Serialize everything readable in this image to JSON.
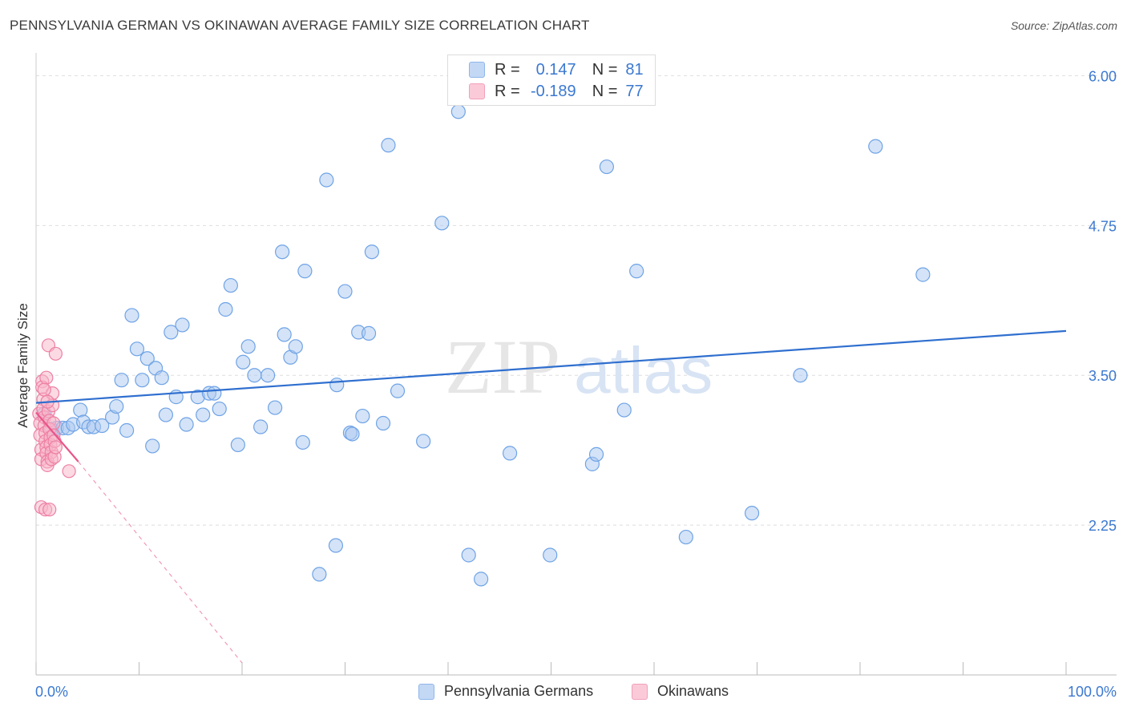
{
  "header": {
    "title": "PENNSYLVANIA GERMAN VS OKINAWAN AVERAGE FAMILY SIZE CORRELATION CHART",
    "source": "Source: ZipAtlas.com"
  },
  "watermark": {
    "zip": "ZIP",
    "atlas": "atlas"
  },
  "stats_legend": {
    "r_label": "R =",
    "n_label": "N =",
    "series": [
      {
        "r": "0.147",
        "n": "81",
        "color": "#6fa3e6"
      },
      {
        "r": "-0.189",
        "n": "77",
        "color": "#f08fae"
      }
    ]
  },
  "colors": {
    "blue_fill": "#aac8f0",
    "blue_stroke": "#6fa3e6",
    "blue_line": "#2f6fcf",
    "pink_fill": "#f7b6ca",
    "pink_stroke": "#ee7fa3",
    "pink_line": "#e8558a",
    "tick_label": "#3b78d0",
    "grid": "#dddddd"
  },
  "chart_data": {
    "type": "scatter",
    "title": "PENNSYLVANIA GERMAN VS OKINAWAN AVERAGE FAMILY SIZE CORRELATION CHART",
    "xlabel": "",
    "ylabel": "Average Family Size",
    "xlim": [
      0,
      100
    ],
    "ylim": [
      1.0,
      6.15
    ],
    "x_tick_labels": [
      "0.0%",
      "100.0%"
    ],
    "y_ticks": [
      2.25,
      3.5,
      4.75,
      6.0
    ],
    "y_tick_labels": [
      "2.25",
      "3.50",
      "4.75",
      "6.00"
    ],
    "grid": true,
    "legend_position": "bottom",
    "series": [
      {
        "name": "Pennsylvania Germans",
        "trend": {
          "x": [
            0,
            100
          ],
          "y": [
            3.27,
            3.87
          ]
        },
        "points": [
          [
            0.8,
            3.18
          ],
          [
            1.5,
            3.05
          ],
          [
            2.0,
            3.06
          ],
          [
            2.6,
            3.06
          ],
          [
            3.1,
            3.06
          ],
          [
            3.6,
            3.09
          ],
          [
            4.3,
            3.21
          ],
          [
            4.6,
            3.11
          ],
          [
            5.1,
            3.07
          ],
          [
            5.6,
            3.07
          ],
          [
            6.4,
            3.08
          ],
          [
            7.4,
            3.15
          ],
          [
            7.8,
            3.24
          ],
          [
            8.3,
            3.46
          ],
          [
            8.8,
            3.04
          ],
          [
            9.3,
            4.0
          ],
          [
            9.8,
            3.72
          ],
          [
            10.3,
            3.46
          ],
          [
            10.8,
            3.64
          ],
          [
            11.3,
            2.91
          ],
          [
            11.6,
            3.56
          ],
          [
            12.2,
            3.48
          ],
          [
            12.6,
            3.17
          ],
          [
            13.1,
            3.86
          ],
          [
            13.6,
            3.32
          ],
          [
            14.2,
            3.92
          ],
          [
            14.6,
            3.09
          ],
          [
            15.7,
            3.32
          ],
          [
            16.2,
            3.17
          ],
          [
            16.8,
            3.35
          ],
          [
            17.3,
            3.35
          ],
          [
            17.8,
            3.22
          ],
          [
            18.4,
            4.05
          ],
          [
            18.9,
            4.25
          ],
          [
            19.6,
            2.92
          ],
          [
            20.1,
            3.61
          ],
          [
            20.6,
            3.74
          ],
          [
            21.2,
            3.5
          ],
          [
            21.8,
            3.07
          ],
          [
            22.5,
            3.5
          ],
          [
            23.2,
            3.23
          ],
          [
            23.9,
            4.53
          ],
          [
            24.1,
            3.84
          ],
          [
            24.7,
            3.65
          ],
          [
            25.2,
            3.74
          ],
          [
            25.9,
            2.94
          ],
          [
            26.1,
            4.37
          ],
          [
            27.5,
            1.84
          ],
          [
            28.2,
            5.13
          ],
          [
            29.1,
            2.08
          ],
          [
            29.2,
            3.42
          ],
          [
            30.0,
            4.2
          ],
          [
            30.5,
            3.02
          ],
          [
            30.7,
            3.01
          ],
          [
            31.3,
            3.86
          ],
          [
            31.7,
            3.16
          ],
          [
            32.3,
            3.85
          ],
          [
            32.6,
            4.53
          ],
          [
            33.7,
            3.1
          ],
          [
            34.2,
            5.42
          ],
          [
            35.1,
            3.37
          ],
          [
            37.6,
            2.95
          ],
          [
            39.4,
            4.77
          ],
          [
            41.0,
            5.7
          ],
          [
            42.0,
            2.0
          ],
          [
            43.2,
            1.8
          ],
          [
            46.0,
            2.85
          ],
          [
            49.9,
            2.0
          ],
          [
            54.0,
            2.76
          ],
          [
            54.4,
            2.84
          ],
          [
            55.4,
            5.24
          ],
          [
            57.1,
            3.21
          ],
          [
            58.3,
            4.37
          ],
          [
            63.1,
            2.15
          ],
          [
            69.5,
            2.35
          ],
          [
            74.2,
            3.5
          ],
          [
            81.5,
            5.41
          ],
          [
            86.1,
            4.34
          ]
        ]
      },
      {
        "name": "Okinawans",
        "trend": {
          "x": [
            0,
            4.1
          ],
          "y": [
            3.19,
            2.78
          ]
        },
        "trend_extended": {
          "x": [
            4.1,
            20.0
          ],
          "y": [
            2.78,
            1.1
          ]
        },
        "points": [
          [
            0.3,
            3.18
          ],
          [
            0.4,
            3.1
          ],
          [
            0.4,
            3.0
          ],
          [
            0.5,
            2.88
          ],
          [
            0.5,
            2.8
          ],
          [
            0.6,
            3.45
          ],
          [
            0.6,
            3.4
          ],
          [
            0.7,
            3.3
          ],
          [
            0.7,
            3.22
          ],
          [
            0.8,
            3.15
          ],
          [
            0.8,
            3.08
          ],
          [
            0.9,
            3.02
          ],
          [
            0.9,
            2.95
          ],
          [
            1.0,
            2.9
          ],
          [
            1.0,
            2.85
          ],
          [
            1.1,
            2.78
          ],
          [
            1.1,
            2.75
          ],
          [
            1.2,
            3.75
          ],
          [
            1.2,
            3.2
          ],
          [
            1.3,
            3.12
          ],
          [
            1.3,
            3.05
          ],
          [
            1.4,
            2.98
          ],
          [
            1.4,
            2.92
          ],
          [
            1.5,
            2.86
          ],
          [
            1.5,
            2.8
          ],
          [
            1.6,
            3.35
          ],
          [
            1.6,
            3.25
          ],
          [
            1.7,
            3.1
          ],
          [
            1.7,
            3.0
          ],
          [
            1.8,
            2.95
          ],
          [
            1.8,
            2.82
          ],
          [
            1.9,
            3.68
          ],
          [
            1.9,
            2.9
          ],
          [
            0.5,
            2.4
          ],
          [
            0.9,
            2.38
          ],
          [
            1.3,
            2.38
          ],
          [
            3.2,
            2.7
          ],
          [
            1.0,
            3.48
          ],
          [
            0.8,
            3.38
          ],
          [
            1.1,
            3.28
          ]
        ]
      }
    ]
  },
  "bottom_legend": [
    {
      "label": "Pennsylvania Germans"
    },
    {
      "label": "Okinawans"
    }
  ]
}
